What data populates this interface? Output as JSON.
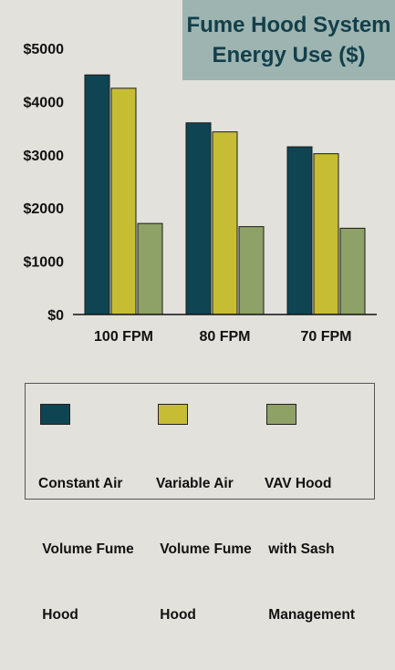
{
  "title_lines": [
    "Fume Hood System",
    "Energy Use ($)"
  ],
  "colors": {
    "background": "#e2e1dc",
    "title_box": "#9db4b1",
    "title_text": "#123f4a"
  },
  "legend": [
    {
      "lines": [
        "Constant Air",
        " Volume Fume",
        " Hood"
      ],
      "color": "#0f4552"
    },
    {
      "lines": [
        "Variable Air",
        " Volume Fume",
        " Hood"
      ],
      "color": "#c6bd34"
    },
    {
      "lines": [
        "VAV Hood",
        " with Sash",
        " Management"
      ],
      "color": "#8ea166"
    }
  ],
  "chart_data": {
    "type": "bar",
    "title": "Fume Hood System Energy Use ($)",
    "categories": [
      "100 FPM",
      "80 FPM",
      "70 FPM"
    ],
    "series": [
      {
        "name": "Constant Air Volume Fume Hood",
        "color": "#0f4552",
        "values": [
          4500,
          3600,
          3150
        ]
      },
      {
        "name": "Variable Air Volume Fume Hood",
        "color": "#c6bd34",
        "values": [
          4250,
          3430,
          3020
        ]
      },
      {
        "name": "VAV Hood with Sash Management",
        "color": "#8ea166",
        "values": [
          1710,
          1650,
          1620
        ]
      }
    ],
    "y_ticks": [
      "$0",
      "$1000",
      "$2000",
      "$3000",
      "$4000",
      "$5000"
    ],
    "ylim": [
      0,
      5000
    ],
    "grid": false,
    "legend_position": "bottom"
  }
}
